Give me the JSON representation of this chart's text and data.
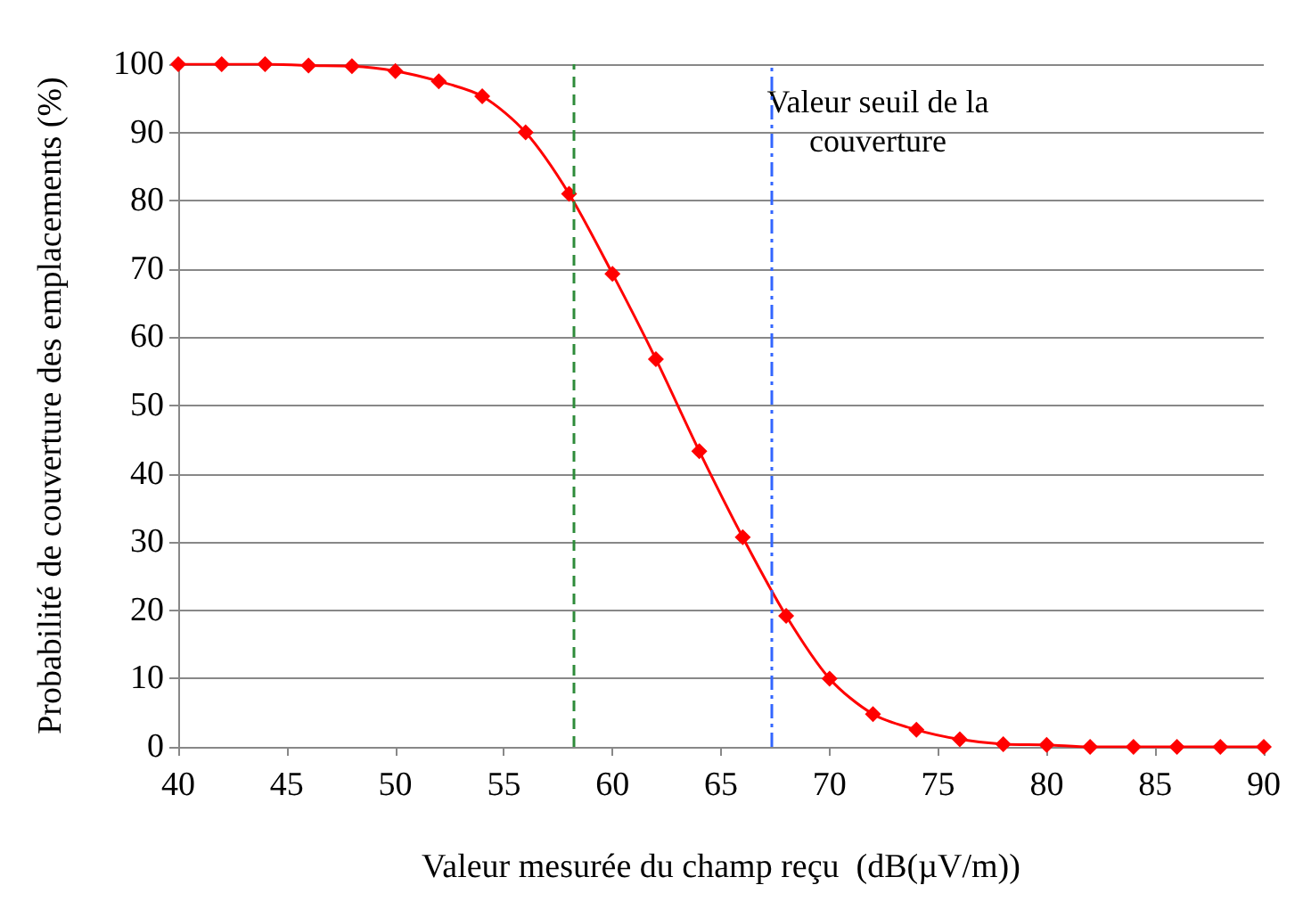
{
  "chart_data": {
    "type": "line",
    "xlabel": "Valeur mesurée du champ reçu  (dB(µV/m))",
    "ylabel": "Probabilité de couverture des emplacements (%)",
    "x": [
      40,
      42,
      44,
      46,
      48,
      50,
      52,
      54,
      56,
      58,
      60,
      62,
      64,
      66,
      68,
      70,
      72,
      74,
      76,
      78,
      80,
      82,
      84,
      86,
      88,
      90
    ],
    "series": [
      {
        "color": "#ff0000",
        "values": [
          100,
          100,
          100,
          99.8,
          99.7,
          99,
          97.5,
          95.3,
          90,
          81,
          69.3,
          56.8,
          43.3,
          30.7,
          19.2,
          10,
          4.8,
          2.5,
          1.1,
          0.4,
          0.3,
          0,
          0,
          0,
          0,
          0
        ]
      }
    ],
    "xlim": [
      40,
      90
    ],
    "xticks": [
      40,
      45,
      50,
      55,
      60,
      65,
      70,
      75,
      80,
      85,
      90
    ],
    "ylim": [
      0,
      100
    ],
    "yticks": [
      0,
      10,
      20,
      30,
      40,
      50,
      60,
      70,
      80,
      90,
      100
    ],
    "grid": "y",
    "marker": "diamond",
    "line_style": "solid",
    "ref_lines": [
      {
        "axis": "x",
        "value": 58.2,
        "color": "#2e8b3a",
        "line_style": "dashed"
      },
      {
        "axis": "x",
        "value": 67.3,
        "color": "#3366ff",
        "line_style": "dotted",
        "label": "Valeur seuil de la\ncouverture"
      }
    ]
  }
}
